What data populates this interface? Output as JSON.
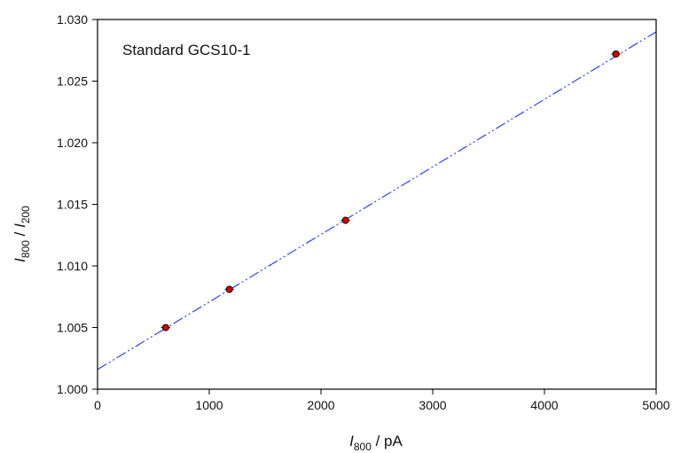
{
  "chart_data": {
    "type": "scatter",
    "annotation": "Standard GCS10-1",
    "xlabel": {
      "symbol": "I",
      "subscript": "800",
      "suffix": " / pA"
    },
    "ylabel": {
      "num_symbol": "I",
      "num_subscript": "800",
      "separator": " / ",
      "den_symbol": "I",
      "den_subscript": "200"
    },
    "xlim": [
      0,
      5000
    ],
    "ylim": [
      1.0,
      1.03
    ],
    "xticks": [
      "0",
      "1000",
      "2000",
      "3000",
      "4000",
      "5000"
    ],
    "yticks": [
      "1.000",
      "1.005",
      "1.010",
      "1.015",
      "1.020",
      "1.025",
      "1.030"
    ],
    "grid": false,
    "legend": "none",
    "series": [
      {
        "type": "scatter",
        "color": "#d40000",
        "edge_color": "#000000",
        "points": [
          {
            "x": 610,
            "y": 1.005,
            "x_err": 40
          },
          {
            "x": 1180,
            "y": 1.0081,
            "x_err": 40
          },
          {
            "x": 2220,
            "y": 1.0137,
            "x_err": 40
          },
          {
            "x": 4640,
            "y": 1.0272,
            "x_err": 40
          }
        ]
      },
      {
        "type": "line",
        "color": "#1f32ff",
        "style": "dash-dot-dot",
        "x": [
          0,
          5000
        ],
        "y": [
          1.0016,
          1.029
        ]
      }
    ]
  }
}
